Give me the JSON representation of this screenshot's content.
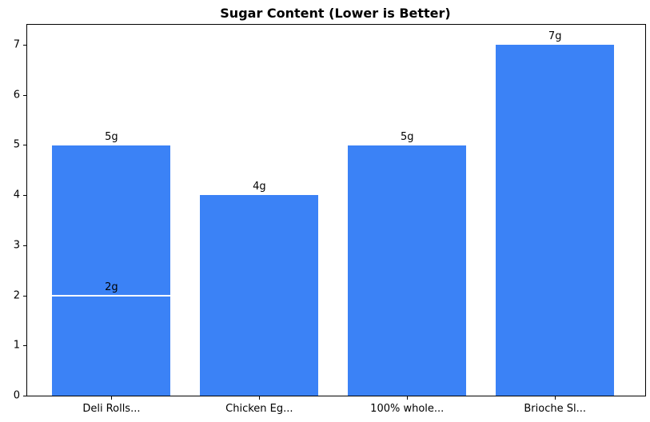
{
  "chart_data": {
    "type": "bar",
    "title": "Sugar Content (Lower is Better)",
    "categories": [
      "Deli Rolls...",
      "Chicken Eg...",
      "100% whole...",
      "Brioche Sl..."
    ],
    "values": [
      5,
      4,
      5,
      7
    ],
    "bar_labels": [
      "5g",
      "4g",
      "5g",
      "7g"
    ],
    "annotations": [
      {
        "category_index": 0,
        "value": 2,
        "label": "2g",
        "line_color": "#ffffff"
      }
    ],
    "yticks": [
      "0",
      "1",
      "2",
      "3",
      "4",
      "5",
      "6",
      "7"
    ],
    "ylabel": "",
    "xlabel": "",
    "ylim": [
      0,
      7.4
    ],
    "xlim": [
      -0.57,
      3.61
    ],
    "bar_width": 0.8,
    "bar_color": "#3b82f6",
    "axis_color": "#000000",
    "grid": false,
    "legend_position": "none"
  }
}
